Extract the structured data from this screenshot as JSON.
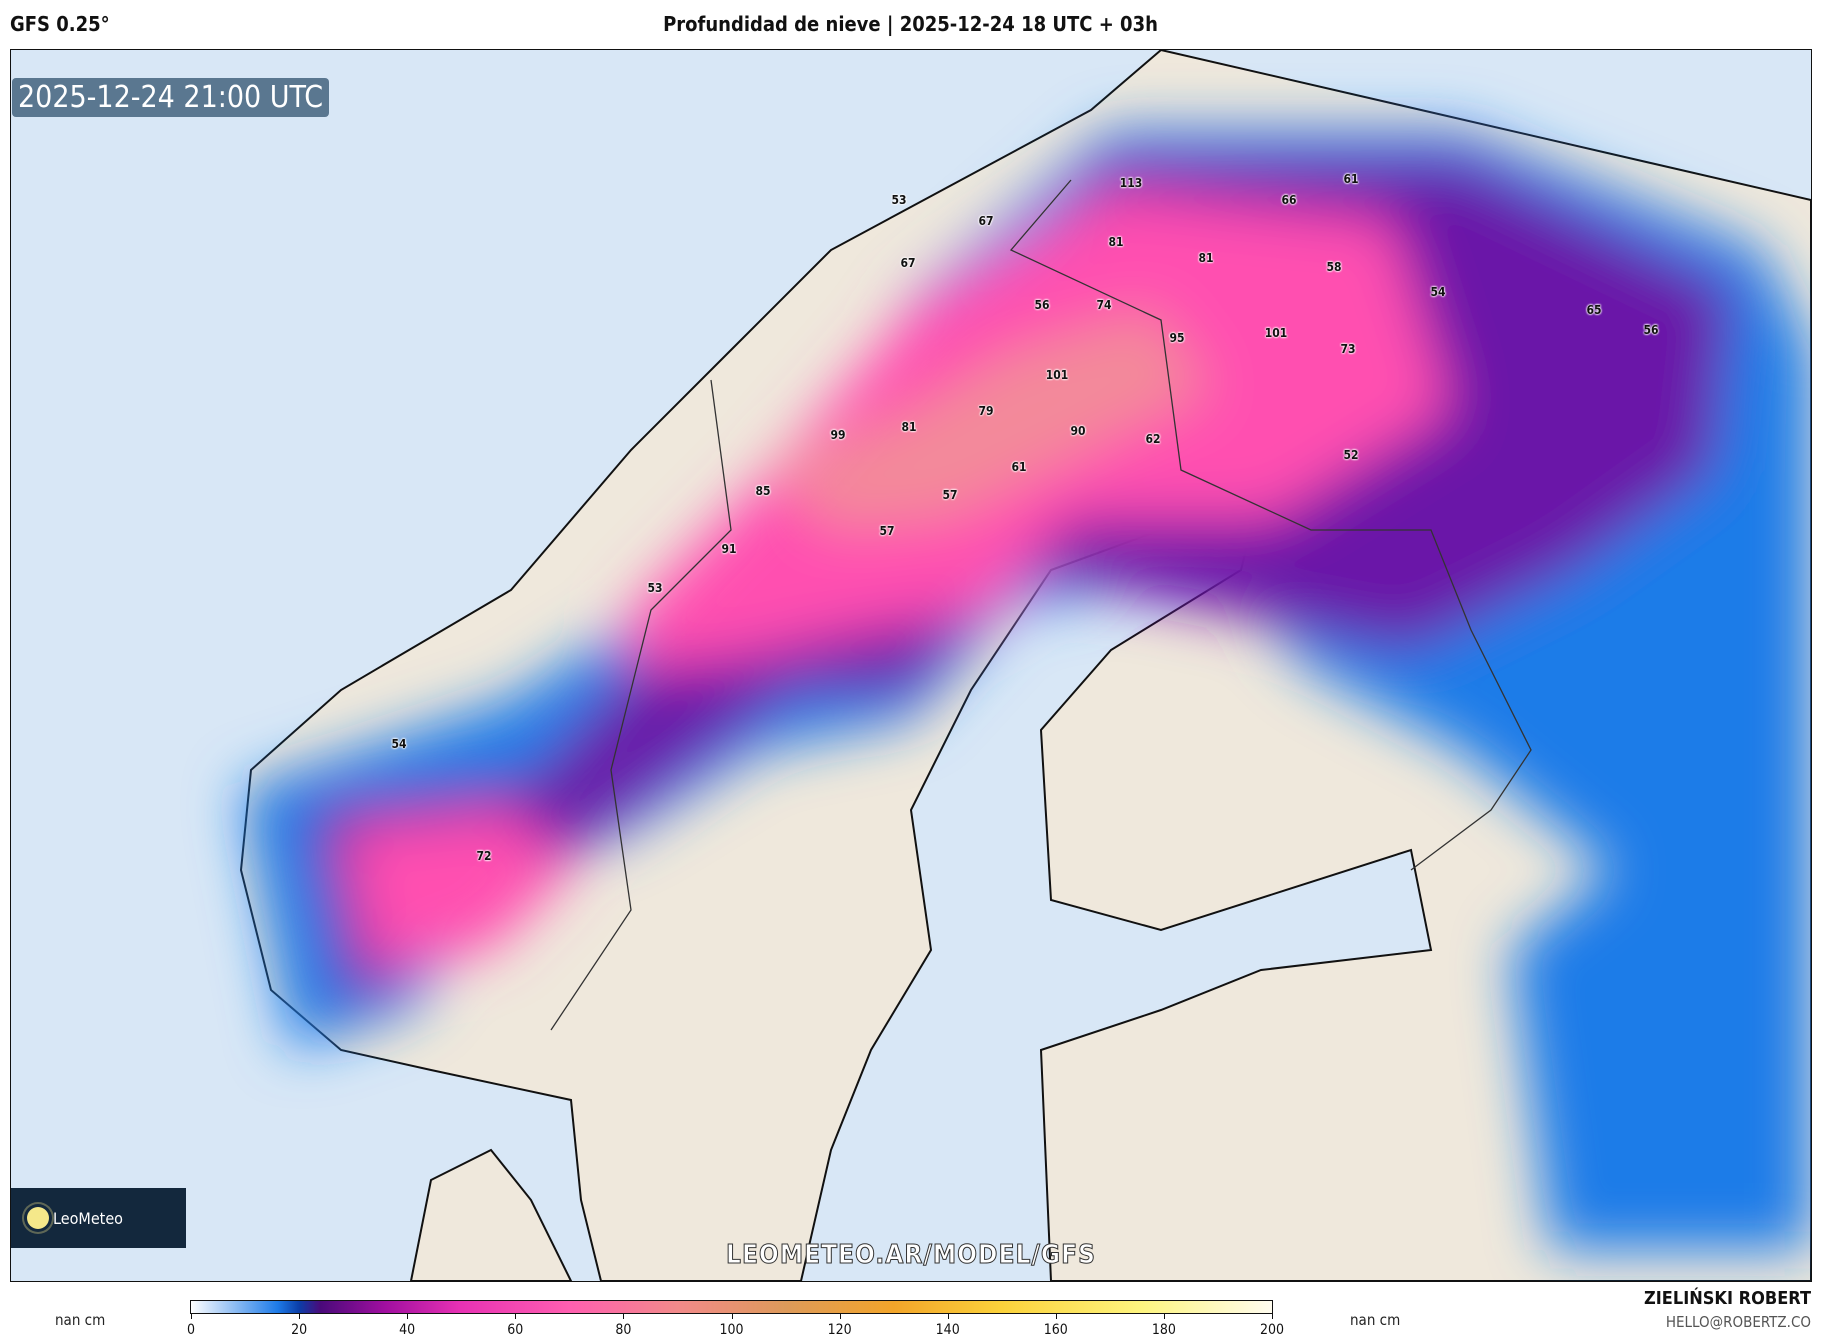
{
  "header": {
    "model": "GFS 0.25°",
    "title": "Profundidad de nieve | 2025-12-24 18 UTC + 03h"
  },
  "map": {
    "valid_time": "2025-12-24 21:00 UTC",
    "watermark": "LEOMETEO.AR/MODEL/GFS",
    "logo_text": "LeoMeteo",
    "colors": {
      "sea": "#d8e7f6",
      "land": "#efe8dc",
      "snow_low": "#1e7be8",
      "snow_mid": "#7a0fa0",
      "snow_high": "#ff4fb0"
    },
    "labels": [
      "113",
      "61",
      "66",
      "53",
      "67",
      "81",
      "81",
      "58",
      "67",
      "56",
      "74",
      "54",
      "65",
      "56",
      "95",
      "101",
      "73",
      "101",
      "79",
      "81",
      "99",
      "90",
      "62",
      "52",
      "61",
      "85",
      "57",
      "57",
      "91",
      "53",
      "54",
      "72"
    ]
  },
  "colorbar": {
    "unit_left": "nan cm",
    "unit_right": "nan cm",
    "ticks": [
      "0",
      "20",
      "40",
      "60",
      "80",
      "100",
      "120",
      "140",
      "160",
      "180",
      "200"
    ],
    "range": [
      0,
      200
    ]
  },
  "footer": {
    "author": "ZIELIŃSKI ROBERT",
    "email": "HELLO@ROBERTZ.CO"
  }
}
